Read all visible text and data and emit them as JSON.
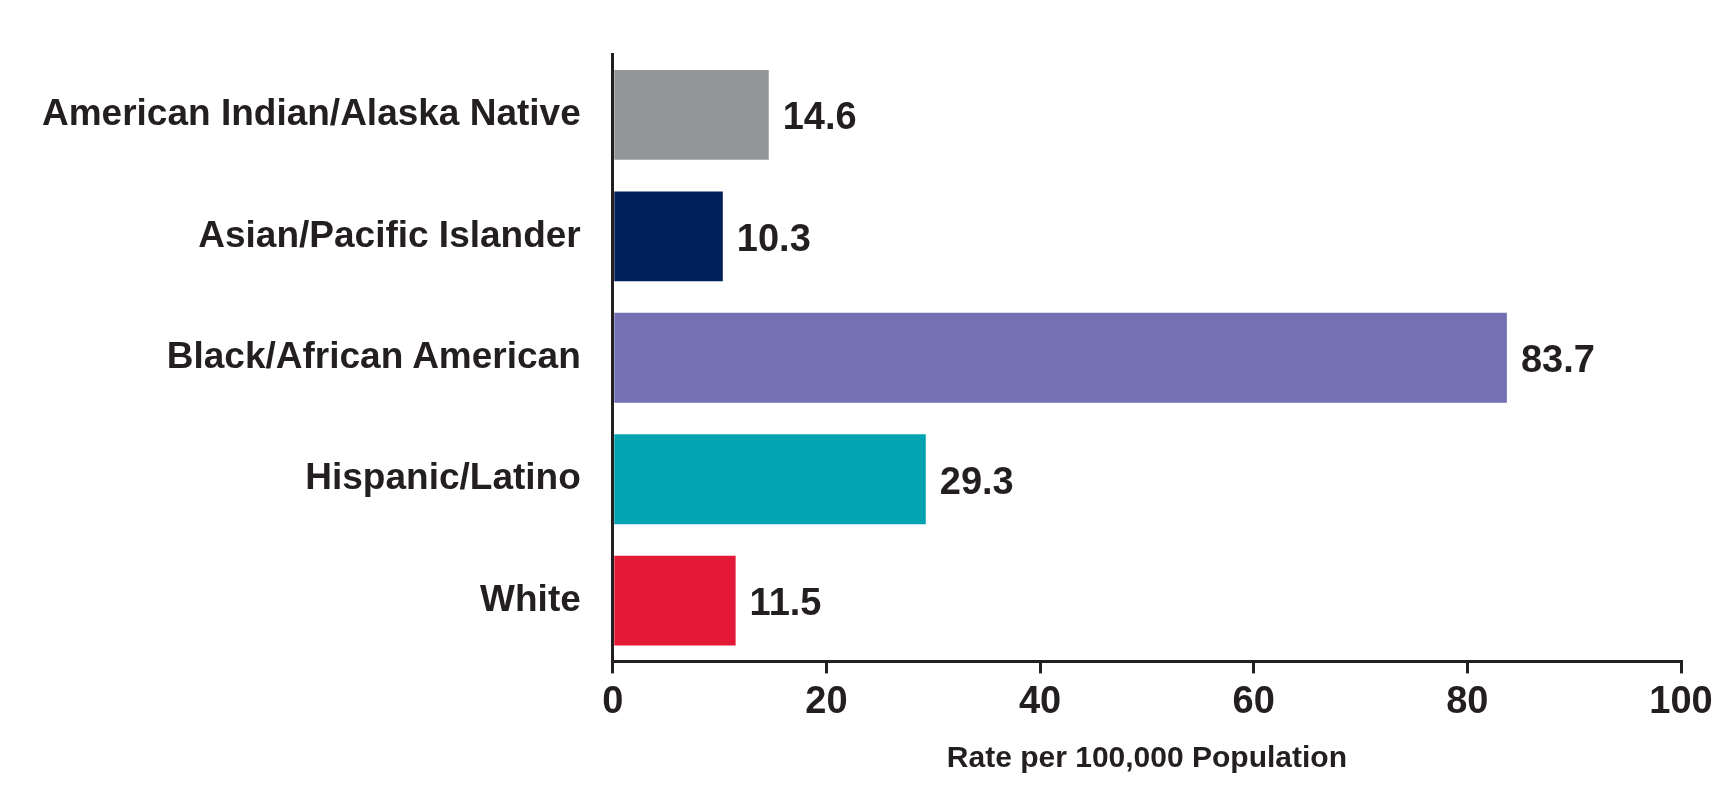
{
  "chart_data": {
    "type": "bar",
    "orientation": "horizontal",
    "xlabel": "Rate per 100,000 Population",
    "categories": [
      "American Indian/Alaska Native",
      "Asian/Pacific Islander",
      "Black/African American",
      "Hispanic/Latino",
      "White"
    ],
    "values": [
      14.6,
      10.3,
      83.7,
      29.3,
      11.5
    ],
    "colors": [
      "#939598",
      "#00205b",
      "#7371b3",
      "#00a3b1",
      "#e31937"
    ],
    "xlim": [
      0,
      100
    ],
    "xticks": [
      0,
      20,
      40,
      60,
      80,
      100
    ],
    "grid": false,
    "legend": false,
    "data_labels": true
  }
}
